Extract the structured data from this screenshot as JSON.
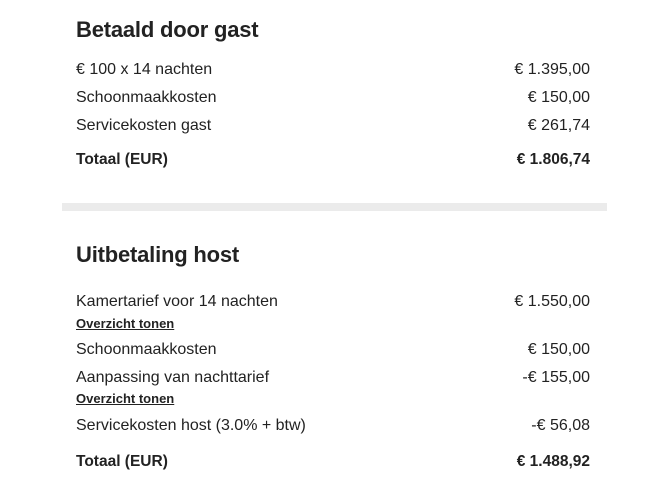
{
  "guest": {
    "title": "Betaald door gast",
    "rows": [
      {
        "label": "€ 100 x 14 nachten",
        "value": "€ 1.395,00"
      },
      {
        "label": "Schoonmaakkosten",
        "value": "€ 150,00"
      },
      {
        "label": "Servicekosten gast",
        "value": "€ 261,74"
      }
    ],
    "total": {
      "label": "Totaal (EUR)",
      "value": "€ 1.806,74"
    }
  },
  "host": {
    "title": "Uitbetaling host",
    "rows": [
      {
        "label": "Kamertarief voor 14 nachten",
        "value": "€ 1.550,00",
        "link": "Overzicht tonen"
      },
      {
        "label": "Schoonmaakkosten",
        "value": "€ 150,00"
      },
      {
        "label": "Aanpassing van nachttarief",
        "value": "-€ 155,00",
        "link": "Overzicht tonen"
      },
      {
        "label": "Servicekosten host (3.0% + btw)",
        "value": "-€ 56,08"
      }
    ],
    "total": {
      "label": "Totaal (EUR)",
      "value": "€ 1.488,92"
    }
  }
}
